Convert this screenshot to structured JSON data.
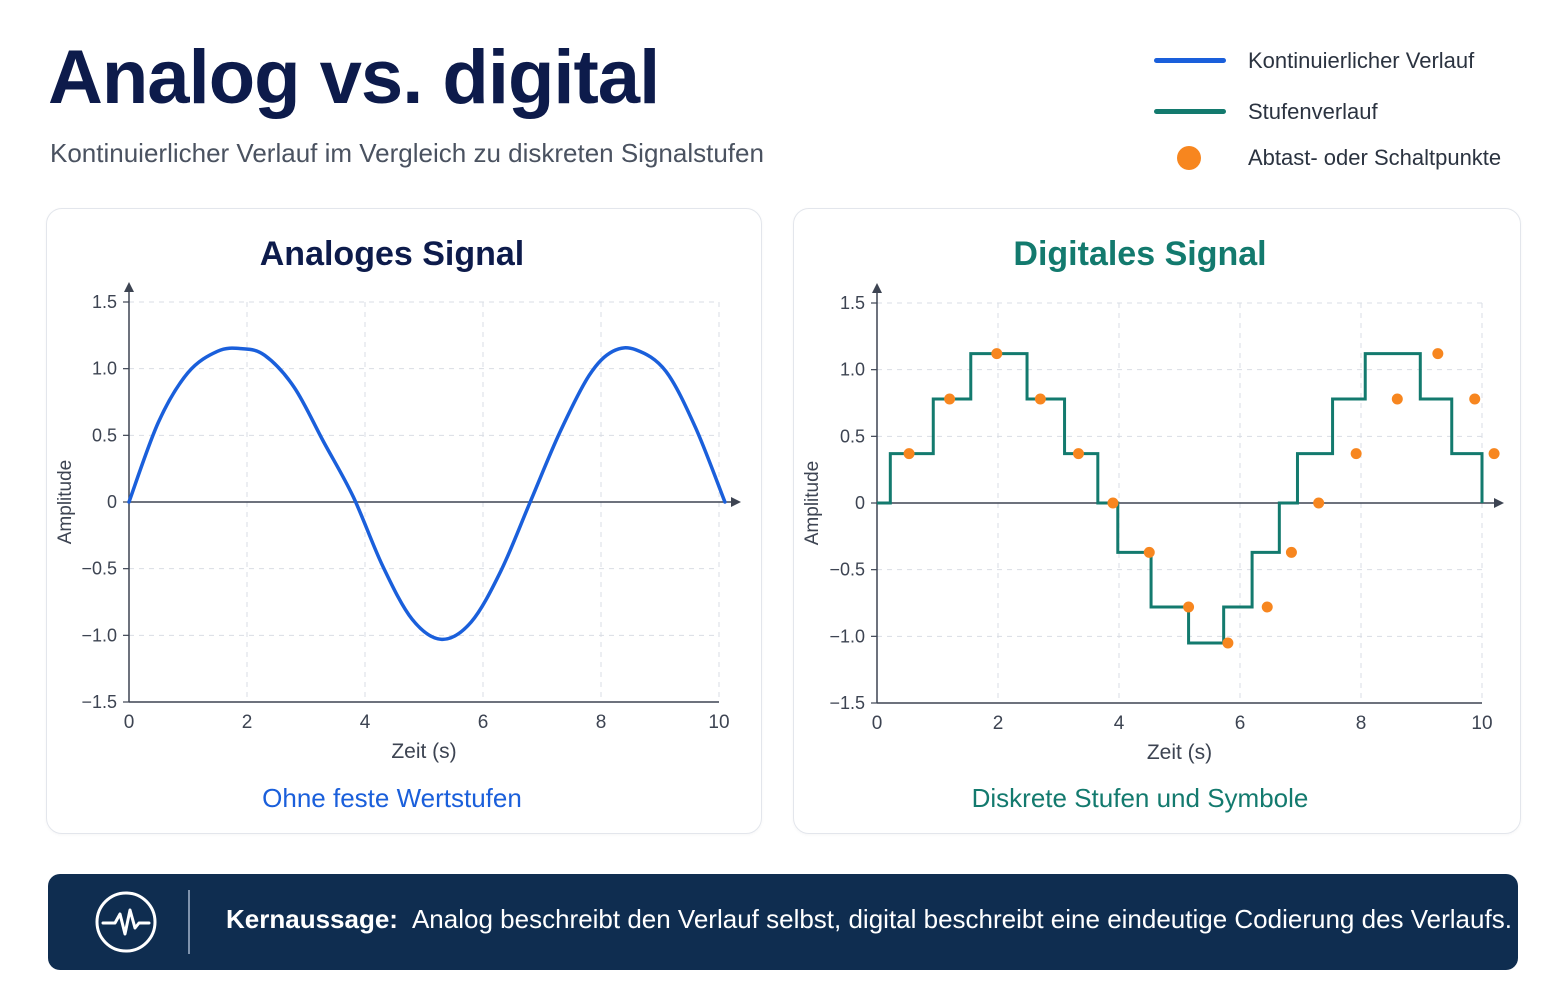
{
  "header": {
    "title": "Analog vs. digital",
    "subtitle": "Kontinuierlicher Verlauf im Vergleich zu diskreten Signalstufen"
  },
  "legend": {
    "items": [
      {
        "label": "Kontinuierlicher Verlauf",
        "kind": "line",
        "color": "#1a5fdb"
      },
      {
        "label": "Stufenverlauf",
        "kind": "line",
        "color": "#137a6e"
      },
      {
        "label": "Abtast- oder Schaltpunkte",
        "kind": "dot",
        "color": "#f7861f"
      }
    ]
  },
  "panels": {
    "left": {
      "title": "Analoges Signal",
      "caption": "Ohne feste Wertstufen",
      "title_color": "#0d1b4b",
      "caption_color": "#1a5fdb"
    },
    "right": {
      "title": "Digitales Signal",
      "caption": "Diskrete Stufen und Symbole",
      "title_color": "#137a6e",
      "caption_color": "#137a6e"
    }
  },
  "chart_data": [
    {
      "type": "line",
      "title": "Analoges Signal",
      "xlabel": "Zeit (s)",
      "ylabel": "Amplitude",
      "xlim": [
        0,
        10
      ],
      "ylim": [
        -1.5,
        1.5
      ],
      "xticks": [
        0,
        2,
        4,
        6,
        8,
        10
      ],
      "yticks": [
        1.5,
        1.0,
        0.5,
        0,
        -0.5,
        -1.0,
        -1.5
      ],
      "ytick_labels": [
        "1.5",
        "1.0",
        "0.5",
        "0",
        "−0.5",
        "−1.0",
        "−1.5"
      ],
      "grid": true,
      "series": [
        {
          "color": "#1a5fdb",
          "x": [
            0,
            0.5,
            1.0,
            1.5,
            1.9,
            2.3,
            2.8,
            3.3,
            3.8,
            4.3,
            4.8,
            5.3,
            5.8,
            6.3,
            6.8,
            7.3,
            7.8,
            8.2,
            8.6,
            9.1,
            9.6,
            10.1
          ],
          "y": [
            0,
            0.6,
            0.97,
            1.13,
            1.15,
            1.1,
            0.86,
            0.45,
            0.04,
            -0.48,
            -0.88,
            -1.03,
            -0.9,
            -0.52,
            0.0,
            0.52,
            0.95,
            1.13,
            1.14,
            0.98,
            0.56,
            0.0
          ]
        }
      ]
    },
    {
      "type": "line",
      "title": "Digitales Signal",
      "xlabel": "Zeit (s)",
      "ylabel": "Amplitude",
      "xlim": [
        0,
        10
      ],
      "ylim": [
        -1.5,
        1.5
      ],
      "xticks": [
        0,
        2,
        4,
        6,
        8,
        10
      ],
      "yticks": [
        1.5,
        1.0,
        0.5,
        0,
        -0.5,
        -1.0,
        -1.5
      ],
      "ytick_labels": [
        "1.5",
        "1.0",
        "0.5",
        "0",
        "−0.5",
        "−1.0",
        "−1.5"
      ],
      "grid": true,
      "step_color": "#137a6e",
      "point_color": "#f7861f",
      "sample_points": {
        "x": [
          0.53,
          1.2,
          1.98,
          2.7,
          3.33,
          3.9,
          4.5,
          5.15,
          5.8,
          6.45,
          6.85,
          7.3,
          7.92,
          8.6,
          9.27,
          9.88,
          10.2
        ],
        "y": [
          0.37,
          0.78,
          1.12,
          0.78,
          0.37,
          0.0,
          -0.37,
          -0.78,
          -1.05,
          -0.78,
          -0.37,
          0.0,
          0.37,
          0.78,
          1.12,
          0.78,
          0.37
        ]
      },
      "step_levels": {
        "edges": [
          0,
          0.22,
          0.93,
          1.55,
          2.48,
          3.1,
          3.65,
          3.98,
          4.53,
          5.15,
          5.73,
          6.2,
          6.65,
          6.95,
          7.53,
          8.07,
          8.98,
          9.5,
          10.0
        ],
        "values": [
          0,
          0.37,
          0.78,
          1.12,
          0.78,
          0.37,
          0,
          -0.37,
          -0.78,
          -1.05,
          -0.78,
          -0.37,
          0,
          0.37,
          0.78,
          1.12,
          0.78,
          0.37
        ]
      }
    }
  ],
  "banner": {
    "label": "Kernaussage:",
    "text": "Analog beschreibt den Verlauf selbst, digital beschreibt eine eindeutige Codierung des Verlaufs.",
    "icon": "pulse-icon"
  }
}
